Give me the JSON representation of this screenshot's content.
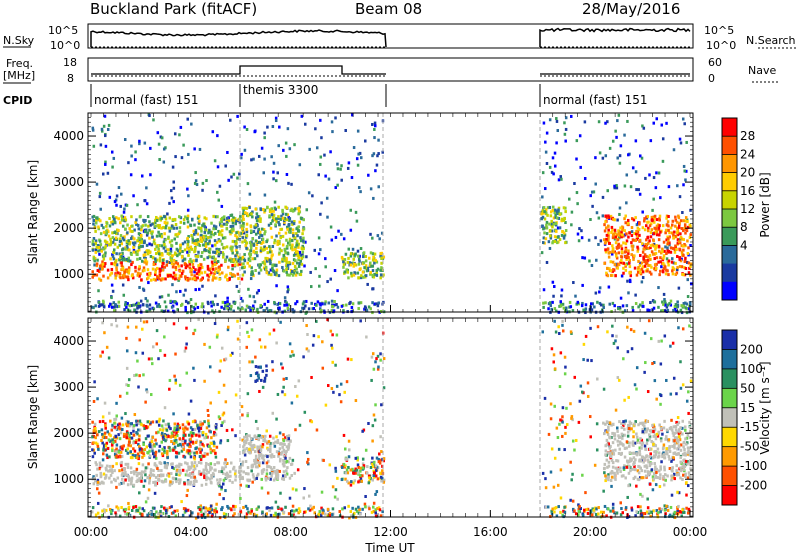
{
  "header": {
    "station": "Buckland Park (fitACF)",
    "beam": "Beam 08",
    "date": "28/May/2016"
  },
  "summary_labels": {
    "nsky": "N.Sky",
    "nsearch": "N.Search",
    "freq_line1": "Freq.",
    "freq_line2": "[MHz]",
    "nave": "Nave",
    "cpid": "CPID"
  },
  "summary_ticks": {
    "noise_left": [
      "10^5",
      "10^0"
    ],
    "noise_right": [
      "10^5",
      "10^0"
    ],
    "freq_left": [
      "18",
      "8"
    ],
    "nave_right": [
      "60",
      "0"
    ]
  },
  "cpid_segments": [
    {
      "label": "normal (fast) 151",
      "start_hour": 0
    },
    {
      "label": "themis 3300",
      "start_hour": 6
    },
    {
      "label": "normal (fast) 151",
      "start_hour": 18
    }
  ],
  "colorbars": {
    "power": {
      "label": "Power [dB]",
      "ticks": [
        "28",
        "24",
        "20",
        "16",
        "12",
        "8",
        "4"
      ],
      "colors": [
        "#ff0000",
        "#ff5000",
        "#ff9600",
        "#ffcc00",
        "#c8d400",
        "#7cc840",
        "#3a9a5a",
        "#2a6a9a",
        "#1a3aa0",
        "#0000ff"
      ]
    },
    "velocity": {
      "label": "Velocity [m s⁻¹]",
      "ticks": [
        "200",
        "100",
        "50",
        "15",
        "-15",
        "-50",
        "-100",
        "-200"
      ],
      "colors": [
        "#1a2fa8",
        "#1e6f9c",
        "#2a9060",
        "#6bd44a",
        "#c0c0b8",
        "#ffd800",
        "#ff9a00",
        "#ff5000",
        "#ff0000"
      ]
    }
  },
  "axes": {
    "y_label": "Slant Range [km]",
    "y_ticks": [
      "4000",
      "3000",
      "2000",
      "1000"
    ],
    "x_label": "Time UT",
    "x_ticks": [
      "00:00",
      "04:00",
      "08:00",
      "12:00",
      "16:00",
      "20:00",
      "00:00"
    ]
  },
  "chart_data": [
    {
      "type": "heatmap",
      "title": "",
      "xlabel": "Time UT",
      "ylabel": "Slant Range [km]",
      "colorbar_label": "Power [dB]",
      "x_range_hours": [
        0,
        24
      ],
      "y_range_km": [
        180,
        4500
      ],
      "data_gaps_hours": [
        [
          11.75,
          18.0
        ]
      ],
      "echo_regions": [
        {
          "t0": 0.0,
          "t1": 6.0,
          "r0": 900,
          "r1": 1300,
          "level": "high"
        },
        {
          "t0": 0.0,
          "t1": 6.0,
          "r0": 1300,
          "r1": 2300,
          "level": "medium"
        },
        {
          "t0": 6.0,
          "t1": 8.5,
          "r0": 1000,
          "r1": 2500,
          "level": "medium"
        },
        {
          "t0": 10.0,
          "t1": 11.7,
          "r0": 950,
          "r1": 1500,
          "level": "medium"
        },
        {
          "t0": 18.0,
          "t1": 19.0,
          "r0": 1700,
          "r1": 2500,
          "level": "medium"
        },
        {
          "t0": 20.5,
          "t1": 24.0,
          "r0": 1000,
          "r1": 2300,
          "level": "high"
        }
      ]
    },
    {
      "type": "heatmap",
      "title": "",
      "xlabel": "Time UT",
      "ylabel": "Slant Range [km]",
      "colorbar_label": "Velocity [m s⁻¹]",
      "x_range_hours": [
        0,
        24
      ],
      "y_range_km": [
        180,
        4500
      ],
      "data_gaps_hours": [
        [
          11.75,
          18.0
        ]
      ],
      "echo_regions": [
        {
          "t0": 0.0,
          "t1": 6.0,
          "r0": 900,
          "r1": 1400,
          "level": "ground"
        },
        {
          "t0": 0.0,
          "t1": 5.0,
          "r0": 1500,
          "r1": 2300,
          "level": "mixed"
        },
        {
          "t0": 6.0,
          "t1": 8.0,
          "r0": 1000,
          "r1": 2000,
          "level": "ground"
        },
        {
          "t0": 6.5,
          "t1": 7.0,
          "r0": 3100,
          "r1": 3500,
          "level": "positive"
        },
        {
          "t0": 10.0,
          "t1": 11.7,
          "r0": 950,
          "r1": 1500,
          "level": "mixed"
        },
        {
          "t0": 20.5,
          "t1": 24.0,
          "r0": 1000,
          "r1": 2300,
          "level": "ground"
        }
      ]
    }
  ]
}
